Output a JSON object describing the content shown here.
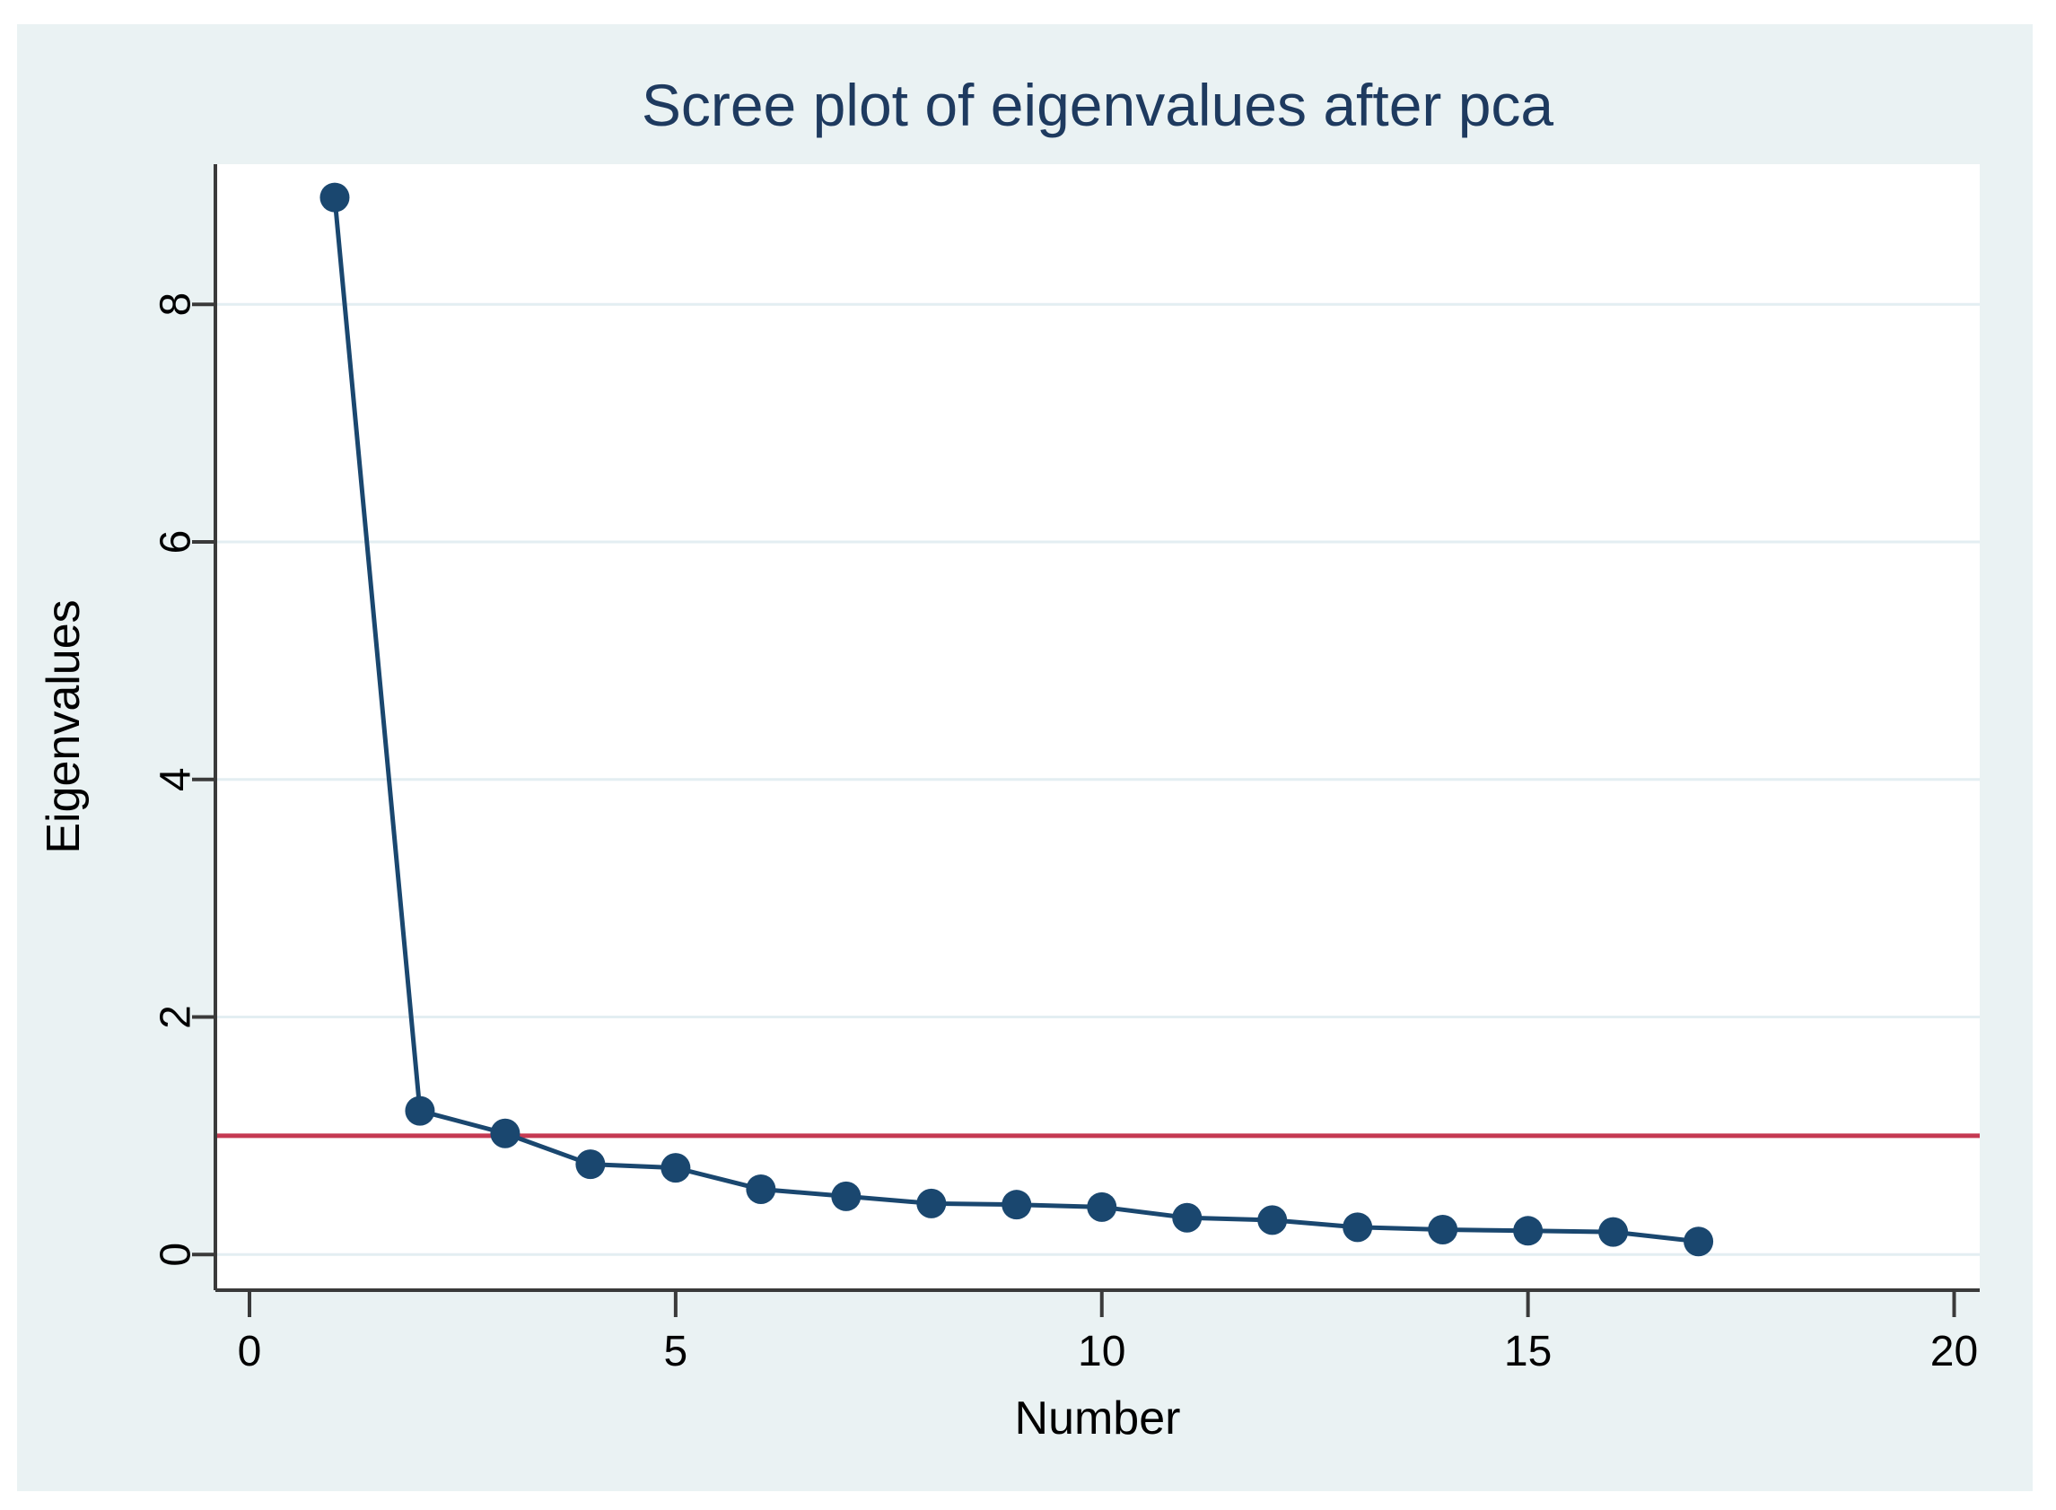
{
  "window": {
    "background": "#ffffff",
    "panel_background": "#eaf2f3",
    "plot_background": "#ffffff"
  },
  "chart_data": {
    "type": "line",
    "title": "Scree plot of eigenvalues after pca",
    "xlabel": "Number",
    "ylabel": "Eigenvalues",
    "x": [
      1,
      2,
      3,
      4,
      5,
      6,
      7,
      8,
      9,
      10,
      11,
      12,
      13,
      14,
      15,
      16,
      17
    ],
    "series": [
      {
        "name": "Eigenvalues",
        "values": [
          8.9,
          1.21,
          1.02,
          0.76,
          0.73,
          0.55,
          0.49,
          0.43,
          0.42,
          0.4,
          0.31,
          0.29,
          0.23,
          0.21,
          0.2,
          0.19,
          0.11
        ],
        "color": "#1a476f",
        "marker": "circle"
      }
    ],
    "reference_line": {
      "orientation": "horizontal",
      "value": 1,
      "color": "#c53952",
      "label": ""
    },
    "x_ticks": [
      0,
      5,
      10,
      15,
      20
    ],
    "y_ticks": [
      0,
      2,
      4,
      6,
      8
    ],
    "xlim": [
      -0.4,
      20.3
    ],
    "ylim": [
      -0.3,
      9.18
    ],
    "grid": "horizontal",
    "legend_position": "none",
    "style": {
      "title_color": "#1e3a5f",
      "axis_color": "#3a3a3a",
      "grid_color": "#e3eef2",
      "tick_label_color": "#000000",
      "panel_background": "#eaf2f3",
      "plot_background": "#ffffff",
      "y_tick_label_rotated": true
    }
  }
}
